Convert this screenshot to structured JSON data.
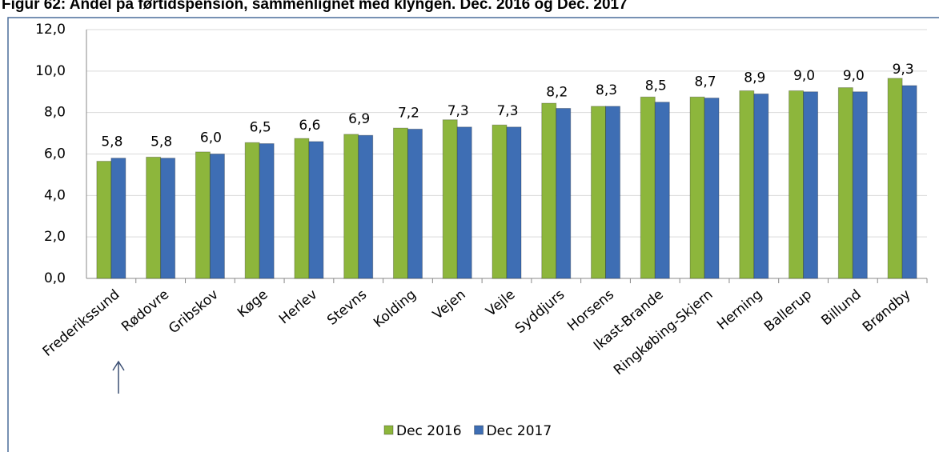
{
  "chart_data": {
    "type": "bar",
    "title": "Figur 62: Andel på førtidspension, sammenlignet med klyngen. Dec. 2016 og Dec. 2017",
    "categories": [
      "Frederikssund",
      "Rødovre",
      "Gribskov",
      "Køge",
      "Herlev",
      "Stevns",
      "Kolding",
      "Vejen",
      "Vejle",
      "Syddjurs",
      "Horsens",
      "Ikast-Brande",
      "Ringkøbing-Skjern",
      "Herning",
      "Ballerup",
      "Billund",
      "Brøndby"
    ],
    "series": [
      {
        "name": "Dec 2016",
        "color": "#8db63c",
        "values": [
          5.65,
          5.85,
          6.1,
          6.55,
          6.75,
          6.95,
          7.25,
          7.65,
          7.4,
          8.45,
          8.3,
          8.75,
          8.75,
          9.05,
          9.05,
          9.2,
          9.65
        ]
      },
      {
        "name": "Dec 2017",
        "color": "#3e6eb4",
        "values": [
          5.8,
          5.8,
          6.0,
          6.5,
          6.6,
          6.9,
          7.2,
          7.3,
          7.3,
          8.2,
          8.3,
          8.5,
          8.7,
          8.9,
          9.0,
          9.0,
          9.3
        ],
        "value_labels": [
          "5,8",
          "5,8",
          "6,0",
          "6,5",
          "6,6",
          "6,9",
          "7,2",
          "7,3",
          "7,3",
          "8,2",
          "8,3",
          "8,5",
          "8,7",
          "8,9",
          "9,0",
          "9,0",
          "9,3"
        ]
      }
    ],
    "ylim": [
      0,
      12
    ],
    "yticks": [
      {
        "value": 0,
        "label": "0,0"
      },
      {
        "value": 2,
        "label": "2,0"
      },
      {
        "value": 4,
        "label": "4,0"
      },
      {
        "value": 6,
        "label": "6,0"
      },
      {
        "value": 8,
        "label": "8,0"
      },
      {
        "value": 10,
        "label": "10,0"
      },
      {
        "value": 12,
        "label": "12,0"
      }
    ],
    "grid": true,
    "legend": "bottom"
  }
}
